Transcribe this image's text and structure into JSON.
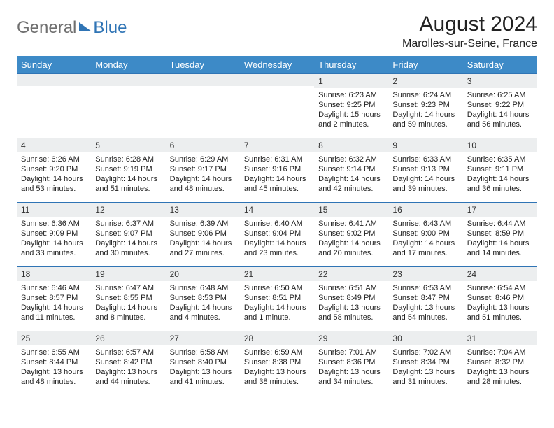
{
  "logo": {
    "general": "General",
    "blue": "Blue"
  },
  "title": "August 2024",
  "location": "Marolles-sur-Seine, France",
  "colors": {
    "header_bg": "#3d8ac7",
    "header_text": "#ffffff",
    "border": "#2f74b5",
    "daynum_bg": "#eceeef",
    "logo_gray": "#6f6f6f",
    "logo_blue": "#2f74b5"
  },
  "weekdays": [
    "Sunday",
    "Monday",
    "Tuesday",
    "Wednesday",
    "Thursday",
    "Friday",
    "Saturday"
  ],
  "weeks": [
    [
      {
        "n": "",
        "sr": "",
        "ss": "",
        "dl": ""
      },
      {
        "n": "",
        "sr": "",
        "ss": "",
        "dl": ""
      },
      {
        "n": "",
        "sr": "",
        "ss": "",
        "dl": ""
      },
      {
        "n": "",
        "sr": "",
        "ss": "",
        "dl": ""
      },
      {
        "n": "1",
        "sr": "Sunrise: 6:23 AM",
        "ss": "Sunset: 9:25 PM",
        "dl": "Daylight: 15 hours and 2 minutes."
      },
      {
        "n": "2",
        "sr": "Sunrise: 6:24 AM",
        "ss": "Sunset: 9:23 PM",
        "dl": "Daylight: 14 hours and 59 minutes."
      },
      {
        "n": "3",
        "sr": "Sunrise: 6:25 AM",
        "ss": "Sunset: 9:22 PM",
        "dl": "Daylight: 14 hours and 56 minutes."
      }
    ],
    [
      {
        "n": "4",
        "sr": "Sunrise: 6:26 AM",
        "ss": "Sunset: 9:20 PM",
        "dl": "Daylight: 14 hours and 53 minutes."
      },
      {
        "n": "5",
        "sr": "Sunrise: 6:28 AM",
        "ss": "Sunset: 9:19 PM",
        "dl": "Daylight: 14 hours and 51 minutes."
      },
      {
        "n": "6",
        "sr": "Sunrise: 6:29 AM",
        "ss": "Sunset: 9:17 PM",
        "dl": "Daylight: 14 hours and 48 minutes."
      },
      {
        "n": "7",
        "sr": "Sunrise: 6:31 AM",
        "ss": "Sunset: 9:16 PM",
        "dl": "Daylight: 14 hours and 45 minutes."
      },
      {
        "n": "8",
        "sr": "Sunrise: 6:32 AM",
        "ss": "Sunset: 9:14 PM",
        "dl": "Daylight: 14 hours and 42 minutes."
      },
      {
        "n": "9",
        "sr": "Sunrise: 6:33 AM",
        "ss": "Sunset: 9:13 PM",
        "dl": "Daylight: 14 hours and 39 minutes."
      },
      {
        "n": "10",
        "sr": "Sunrise: 6:35 AM",
        "ss": "Sunset: 9:11 PM",
        "dl": "Daylight: 14 hours and 36 minutes."
      }
    ],
    [
      {
        "n": "11",
        "sr": "Sunrise: 6:36 AM",
        "ss": "Sunset: 9:09 PM",
        "dl": "Daylight: 14 hours and 33 minutes."
      },
      {
        "n": "12",
        "sr": "Sunrise: 6:37 AM",
        "ss": "Sunset: 9:07 PM",
        "dl": "Daylight: 14 hours and 30 minutes."
      },
      {
        "n": "13",
        "sr": "Sunrise: 6:39 AM",
        "ss": "Sunset: 9:06 PM",
        "dl": "Daylight: 14 hours and 27 minutes."
      },
      {
        "n": "14",
        "sr": "Sunrise: 6:40 AM",
        "ss": "Sunset: 9:04 PM",
        "dl": "Daylight: 14 hours and 23 minutes."
      },
      {
        "n": "15",
        "sr": "Sunrise: 6:41 AM",
        "ss": "Sunset: 9:02 PM",
        "dl": "Daylight: 14 hours and 20 minutes."
      },
      {
        "n": "16",
        "sr": "Sunrise: 6:43 AM",
        "ss": "Sunset: 9:00 PM",
        "dl": "Daylight: 14 hours and 17 minutes."
      },
      {
        "n": "17",
        "sr": "Sunrise: 6:44 AM",
        "ss": "Sunset: 8:59 PM",
        "dl": "Daylight: 14 hours and 14 minutes."
      }
    ],
    [
      {
        "n": "18",
        "sr": "Sunrise: 6:46 AM",
        "ss": "Sunset: 8:57 PM",
        "dl": "Daylight: 14 hours and 11 minutes."
      },
      {
        "n": "19",
        "sr": "Sunrise: 6:47 AM",
        "ss": "Sunset: 8:55 PM",
        "dl": "Daylight: 14 hours and 8 minutes."
      },
      {
        "n": "20",
        "sr": "Sunrise: 6:48 AM",
        "ss": "Sunset: 8:53 PM",
        "dl": "Daylight: 14 hours and 4 minutes."
      },
      {
        "n": "21",
        "sr": "Sunrise: 6:50 AM",
        "ss": "Sunset: 8:51 PM",
        "dl": "Daylight: 14 hours and 1 minute."
      },
      {
        "n": "22",
        "sr": "Sunrise: 6:51 AM",
        "ss": "Sunset: 8:49 PM",
        "dl": "Daylight: 13 hours and 58 minutes."
      },
      {
        "n": "23",
        "sr": "Sunrise: 6:53 AM",
        "ss": "Sunset: 8:47 PM",
        "dl": "Daylight: 13 hours and 54 minutes."
      },
      {
        "n": "24",
        "sr": "Sunrise: 6:54 AM",
        "ss": "Sunset: 8:46 PM",
        "dl": "Daylight: 13 hours and 51 minutes."
      }
    ],
    [
      {
        "n": "25",
        "sr": "Sunrise: 6:55 AM",
        "ss": "Sunset: 8:44 PM",
        "dl": "Daylight: 13 hours and 48 minutes."
      },
      {
        "n": "26",
        "sr": "Sunrise: 6:57 AM",
        "ss": "Sunset: 8:42 PM",
        "dl": "Daylight: 13 hours and 44 minutes."
      },
      {
        "n": "27",
        "sr": "Sunrise: 6:58 AM",
        "ss": "Sunset: 8:40 PM",
        "dl": "Daylight: 13 hours and 41 minutes."
      },
      {
        "n": "28",
        "sr": "Sunrise: 6:59 AM",
        "ss": "Sunset: 8:38 PM",
        "dl": "Daylight: 13 hours and 38 minutes."
      },
      {
        "n": "29",
        "sr": "Sunrise: 7:01 AM",
        "ss": "Sunset: 8:36 PM",
        "dl": "Daylight: 13 hours and 34 minutes."
      },
      {
        "n": "30",
        "sr": "Sunrise: 7:02 AM",
        "ss": "Sunset: 8:34 PM",
        "dl": "Daylight: 13 hours and 31 minutes."
      },
      {
        "n": "31",
        "sr": "Sunrise: 7:04 AM",
        "ss": "Sunset: 8:32 PM",
        "dl": "Daylight: 13 hours and 28 minutes."
      }
    ]
  ]
}
